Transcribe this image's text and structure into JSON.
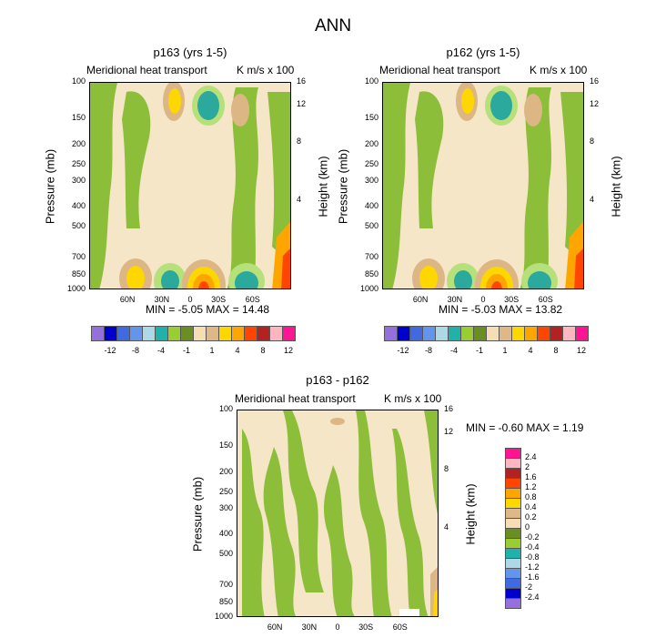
{
  "page_title": "ANN",
  "colors": {
    "cream": "#F5E6C8",
    "green": "#8DBE3A",
    "lightgreen": "#B6E07A",
    "tan": "#DDB686",
    "teal": "#2AA99C",
    "lightblue": "#A9D8E1",
    "yellow": "#FFD700",
    "orange": "#FFA500",
    "red": "#FF4500",
    "darkred": "#B22222",
    "pink": "#FFB6C1",
    "magenta": "#FF1493"
  },
  "chart_data": [
    {
      "type": "heatmap",
      "title": "p163 (yrs 1-5)",
      "left_label": "Meridional heat transport",
      "right_label": "K m/s x 100",
      "xlabel": "",
      "ylabel": "Pressure (mb)",
      "ylabel_right": "Height (km)",
      "x_ticks": [
        "60N",
        "30N",
        "0",
        "30S",
        "60S"
      ],
      "y_ticks": [
        "100",
        "150",
        "200",
        "250",
        "300",
        "400",
        "500",
        "700",
        "850",
        "1000"
      ],
      "y_right_ticks": [
        "16",
        "12",
        "8",
        "4"
      ],
      "min_text": "MIN = -5.05  MAX = 14.48",
      "min": -5.05,
      "max": 14.48,
      "colorbar_levels": [
        "-12",
        "-8",
        "-4",
        "-1",
        "1",
        "4",
        "8",
        "12"
      ],
      "colorbar_colors": [
        "#9370DB",
        "#0000CD",
        "#4169E1",
        "#6495ED",
        "#ADD8E6",
        "#20B2AA",
        "#9ACD32",
        "#6B8E23",
        "#F5DEB3",
        "#DEB887",
        "#FFD700",
        "#FFA500",
        "#FF4500",
        "#B22222",
        "#FFB6C1",
        "#FF1493"
      ]
    },
    {
      "type": "heatmap",
      "title": "p162 (yrs 1-5)",
      "left_label": "Meridional heat transport",
      "right_label": "K m/s x 100",
      "xlabel": "",
      "ylabel": "Pressure (mb)",
      "ylabel_right": "Height (km)",
      "x_ticks": [
        "60N",
        "30N",
        "0",
        "30S",
        "60S"
      ],
      "y_ticks": [
        "100",
        "150",
        "200",
        "250",
        "300",
        "400",
        "500",
        "700",
        "850",
        "1000"
      ],
      "y_right_ticks": [
        "16",
        "12",
        "8",
        "4"
      ],
      "min_text": "MIN = -5.03  MAX = 13.82",
      "min": -5.03,
      "max": 13.82,
      "colorbar_levels": [
        "-12",
        "-8",
        "-4",
        "-1",
        "1",
        "4",
        "8",
        "12"
      ],
      "colorbar_colors": [
        "#9370DB",
        "#0000CD",
        "#4169E1",
        "#6495ED",
        "#ADD8E6",
        "#20B2AA",
        "#9ACD32",
        "#6B8E23",
        "#F5DEB3",
        "#DEB887",
        "#FFD700",
        "#FFA500",
        "#FF4500",
        "#B22222",
        "#FFB6C1",
        "#FF1493"
      ]
    },
    {
      "type": "heatmap",
      "title": "p163 - p162",
      "left_label": "Meridional heat transport",
      "right_label": "K m/s x 100",
      "xlabel": "",
      "ylabel": "Pressure (mb)",
      "ylabel_right": "Height (km)",
      "x_ticks": [
        "60N",
        "30N",
        "0",
        "30S",
        "60S"
      ],
      "y_ticks": [
        "100",
        "150",
        "200",
        "250",
        "300",
        "400",
        "500",
        "700",
        "850",
        "1000"
      ],
      "y_right_ticks": [
        "16",
        "12",
        "8",
        "4"
      ],
      "min_text": "MIN = -0.60  MAX =  1.19",
      "min": -0.6,
      "max": 1.19,
      "colorbar_levels": [
        "2.4",
        "2",
        "1.6",
        "1.2",
        "0.8",
        "0.4",
        "0.2",
        "0",
        "-0.2",
        "-0.4",
        "-0.8",
        "-1.2",
        "-1.6",
        "-2",
        "-2.4"
      ],
      "colorbar_colors": [
        "#FF1493",
        "#FFB6C1",
        "#B22222",
        "#FF4500",
        "#FFA500",
        "#FFD700",
        "#DEB887",
        "#F5DEB3",
        "#6B8E23",
        "#9ACD32",
        "#20B2AA",
        "#ADD8E6",
        "#6495ED",
        "#4169E1",
        "#0000CD",
        "#9370DB"
      ]
    }
  ]
}
